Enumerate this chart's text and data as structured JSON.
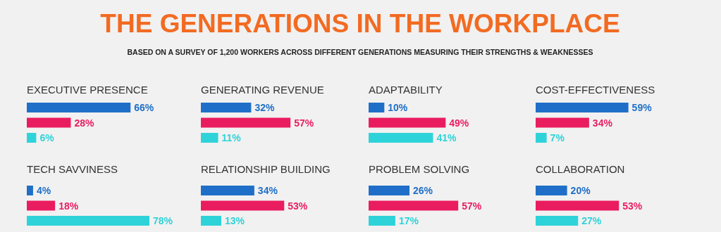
{
  "chart_data": [
    {
      "type": "other",
      "title": "THE GENERATIONS IN THE WORKPLACE",
      "subtitle": "BASED ON A SURVEY OF 1,200 WORKERS ACROSS DIFFERENT GENERATIONS MEASURING THEIR STRENGTHS & WEAKNESSES"
    },
    {
      "type": "bar",
      "orientation": "horizontal",
      "title": "EXECUTIVE PRESENCE",
      "categories": [
        null,
        null,
        null
      ],
      "values": [
        66,
        28,
        6
      ],
      "value_labels": [
        "66%",
        "28%",
        "6%"
      ],
      "colors": [
        "#1f6fc8",
        "#ea1c60",
        "#2ed3d9"
      ]
    },
    {
      "type": "bar",
      "orientation": "horizontal",
      "title": "GENERATING REVENUE",
      "categories": [
        null,
        null,
        null
      ],
      "values": [
        32,
        57,
        11
      ],
      "value_labels": [
        "32%",
        "57%",
        "11%"
      ],
      "colors": [
        "#1f6fc8",
        "#ea1c60",
        "#2ed3d9"
      ]
    },
    {
      "type": "bar",
      "orientation": "horizontal",
      "title": "ADAPTABILITY",
      "categories": [
        null,
        null,
        null
      ],
      "values": [
        10,
        49,
        41
      ],
      "value_labels": [
        "10%",
        "49%",
        "41%"
      ],
      "colors": [
        "#1f6fc8",
        "#ea1c60",
        "#2ed3d9"
      ]
    },
    {
      "type": "bar",
      "orientation": "horizontal",
      "title": "COST-EFFECTIVENESS",
      "categories": [
        null,
        null,
        null
      ],
      "values": [
        59,
        34,
        7
      ],
      "value_labels": [
        "59%",
        "34%",
        "7%"
      ],
      "colors": [
        "#1f6fc8",
        "#ea1c60",
        "#2ed3d9"
      ]
    },
    {
      "type": "bar",
      "orientation": "horizontal",
      "title": "TECH SAVVINESS",
      "categories": [
        null,
        null,
        null
      ],
      "values": [
        4,
        18,
        78
      ],
      "value_labels": [
        "4%",
        "18%",
        "78%"
      ],
      "colors": [
        "#1f6fc8",
        "#ea1c60",
        "#2ed3d9"
      ]
    },
    {
      "type": "bar",
      "orientation": "horizontal",
      "title": "RELATIONSHIP BUILDING",
      "categories": [
        null,
        null,
        null
      ],
      "values": [
        34,
        53,
        13
      ],
      "value_labels": [
        "34%",
        "53%",
        "13%"
      ],
      "colors": [
        "#1f6fc8",
        "#ea1c60",
        "#2ed3d9"
      ]
    },
    {
      "type": "bar",
      "orientation": "horizontal",
      "title": "PROBLEM SOLVING",
      "categories": [
        null,
        null,
        null
      ],
      "values": [
        26,
        57,
        17
      ],
      "value_labels": [
        "26%",
        "57%",
        "17%"
      ],
      "colors": [
        "#1f6fc8",
        "#ea1c60",
        "#2ed3d9"
      ]
    },
    {
      "type": "bar",
      "orientation": "horizontal",
      "title": "COLLABORATION",
      "categories": [
        null,
        null,
        null
      ],
      "values": [
        20,
        53,
        27
      ],
      "value_labels": [
        "20%",
        "53%",
        "27%"
      ],
      "colors": [
        "#1f6fc8",
        "#ea1c60",
        "#2ed3d9"
      ]
    }
  ]
}
